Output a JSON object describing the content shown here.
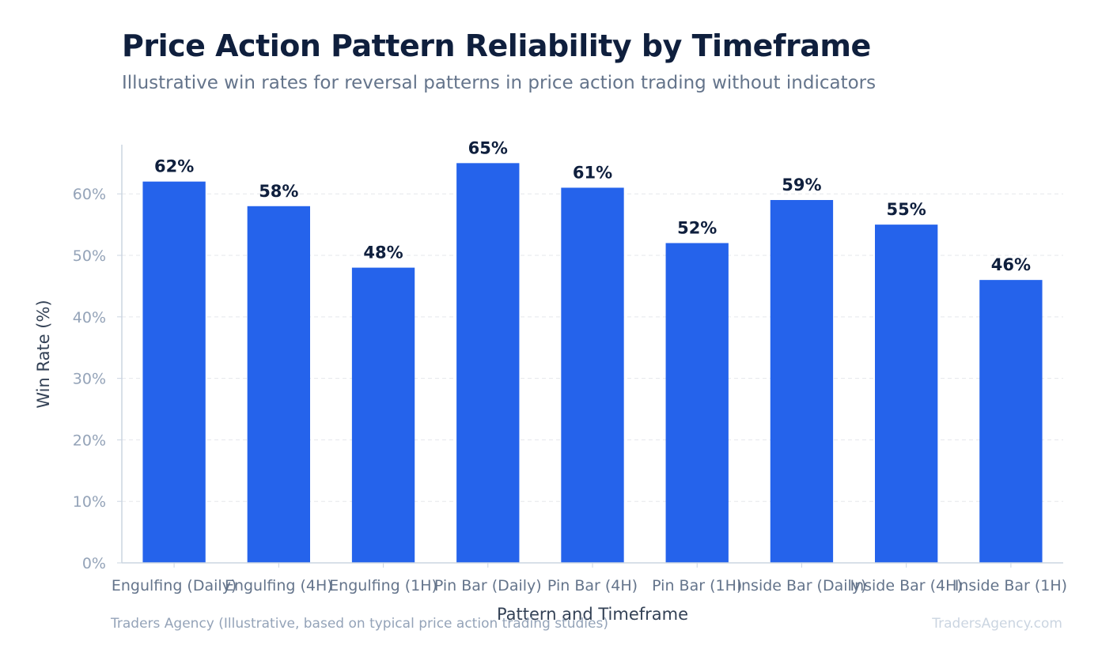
{
  "chart_data": {
    "type": "bar",
    "title": "Price Action Pattern Reliability by Timeframe",
    "subtitle": "Illustrative win rates for reversal patterns in price action trading without indicators",
    "xlabel": "Pattern and Timeframe",
    "ylabel": "Win Rate (%)",
    "categories": [
      "Engulfing (Daily)",
      "Engulfing (4H)",
      "Engulfing (1H)",
      "Pin Bar (Daily)",
      "Pin Bar (4H)",
      "Pin Bar (1H)",
      "Inside Bar (Daily)",
      "Inside Bar (4H)",
      "Inside Bar (1H)"
    ],
    "values": [
      62,
      58,
      48,
      65,
      61,
      52,
      59,
      55,
      46
    ],
    "value_labels": [
      "62%",
      "58%",
      "48%",
      "65%",
      "61%",
      "52%",
      "59%",
      "55%",
      "46%"
    ],
    "ylim": [
      0,
      68
    ],
    "yticks": [
      0,
      10,
      20,
      30,
      40,
      50,
      60
    ],
    "ytick_labels": [
      "0%",
      "10%",
      "20%",
      "30%",
      "40%",
      "50%",
      "60%"
    ],
    "grid": true,
    "legend": "none"
  },
  "footer": {
    "source": "Traders Agency (Illustrative, based on typical price action trading studies)",
    "watermark": "TradersAgency.com"
  },
  "colors": {
    "bar": "#2563eb",
    "title": "#0f1f3d",
    "subtitle": "#64748b",
    "tick": "#94a3b8",
    "grid": "#e5e7eb",
    "axis": "#cbd5e1"
  }
}
